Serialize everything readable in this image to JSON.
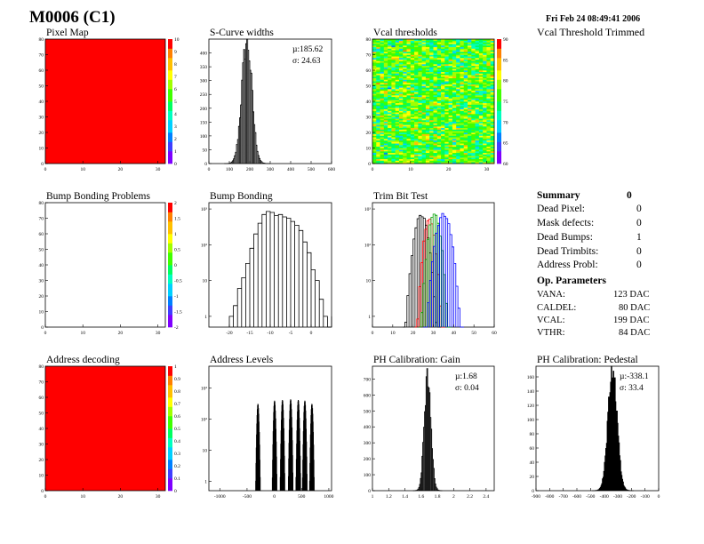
{
  "header": {
    "title": "M0006 (C1)",
    "date": "Fri Feb 24 08:49:41 2006",
    "subtitle": "Vcal Threshold Trimmed"
  },
  "summary": {
    "title": "Summary",
    "title_value": "0",
    "rows": [
      {
        "label": "Dead Pixel:",
        "value": "0"
      },
      {
        "label": "Mask defects:",
        "value": "0"
      },
      {
        "label": "Dead Bumps:",
        "value": "1"
      },
      {
        "label": "Dead Trimbits:",
        "value": "0"
      },
      {
        "label": "Address Probl:",
        "value": "0"
      }
    ],
    "op_title": "Op. Parameters",
    "op_rows": [
      {
        "label": "VANA:",
        "value": "123 DAC"
      },
      {
        "label": "CALDEL:",
        "value": "80 DAC"
      },
      {
        "label": "VCAL:",
        "value": "199 DAC"
      },
      {
        "label": "VTHR:",
        "value": "84 DAC"
      }
    ]
  },
  "colors": {
    "palette": [
      "#7f00ff",
      "#3f3fff",
      "#0080ff",
      "#00d0ff",
      "#00ffc0",
      "#00ff60",
      "#40ff00",
      "#a0ff00",
      "#ffff00",
      "#ffc000",
      "#ff8000",
      "#ff0000"
    ],
    "full": "#ff0000"
  },
  "chart_data": [
    {
      "id": "pixel-map",
      "type": "heatmap",
      "title": "Pixel Map",
      "xlim": [
        0,
        32
      ],
      "ylim": [
        0,
        80
      ],
      "xticks": [
        "0",
        "10",
        "20",
        "30"
      ],
      "yticks": [
        "0",
        "10",
        "20",
        "30",
        "40",
        "50",
        "60",
        "70",
        "80"
      ],
      "zlim": [
        0,
        10
      ],
      "zticks": [
        "0",
        "1",
        "2",
        "3",
        "4",
        "5",
        "6",
        "7",
        "8",
        "9",
        "10"
      ],
      "fill": "uniform",
      "uniform_value": 10
    },
    {
      "id": "s-curve-widths",
      "type": "bar",
      "title": "S-Curve widths",
      "xlim": [
        0,
        600
      ],
      "ylim": [
        0,
        450
      ],
      "xticks": [
        "0",
        "100",
        "200",
        "300",
        "400",
        "500",
        "600"
      ],
      "yticks": [
        "0",
        "50",
        "100",
        "150",
        "200",
        "250",
        "300",
        "350",
        "400"
      ],
      "stats": [
        "µ:185.62",
        "σ: 24.63"
      ],
      "series": [
        {
          "color": "#000000",
          "shape": "gauss",
          "mean": 185.6,
          "sigma": 24.6,
          "peak": 440,
          "bin": 5
        }
      ]
    },
    {
      "id": "vcal-thresholds",
      "type": "heatmap",
      "title": "Vcal thresholds",
      "xlim": [
        0,
        32
      ],
      "ylim": [
        0,
        80
      ],
      "xticks": [
        "0",
        "10",
        "20",
        "30"
      ],
      "yticks": [
        "0",
        "10",
        "20",
        "30",
        "40",
        "50",
        "60",
        "70",
        "80"
      ],
      "zlim": [
        55,
        90
      ],
      "zticks": [
        "60",
        "65",
        "70",
        "75",
        "80",
        "85",
        "90"
      ],
      "fill": "noise",
      "mean": 74,
      "spread": 5
    },
    {
      "id": "bump-bonding-problems",
      "type": "heatmap",
      "title": "Bump Bonding Problems",
      "xlim": [
        0,
        32
      ],
      "ylim": [
        0,
        80
      ],
      "xticks": [
        "0",
        "10",
        "20",
        "30"
      ],
      "yticks": [
        "0",
        "10",
        "20",
        "30",
        "40",
        "50",
        "60",
        "70",
        "80"
      ],
      "zlim": [
        -2,
        2
      ],
      "zticks": [
        "-2",
        "-1.5",
        "-1",
        "-0.5",
        "0",
        "0.5",
        "1",
        "1.5",
        "2"
      ],
      "fill": "empty"
    },
    {
      "id": "bump-bonding",
      "type": "bar",
      "title": "Bump Bonding",
      "ylog": true,
      "xlim": [
        -25,
        5
      ],
      "ylim_log": [
        0.5,
        1500
      ],
      "xticks": [
        "-20",
        "-15",
        "-10",
        "-5",
        "0"
      ],
      "xtick_values": [
        -20,
        -15,
        -10,
        -5,
        0
      ],
      "yticks": [
        "1",
        "10",
        "10²",
        "10³"
      ],
      "ytick_values": [
        1,
        10,
        100,
        1000
      ],
      "series": [
        {
          "color": "#000000",
          "shape": "list",
          "x0": -20,
          "bin": 1,
          "values": [
            1,
            2,
            6,
            12,
            30,
            80,
            200,
            400,
            700,
            850,
            800,
            650,
            700,
            600,
            550,
            450,
            350,
            250,
            120,
            60,
            20,
            10,
            3,
            1,
            0,
            1
          ]
        }
      ]
    },
    {
      "id": "trim-bit-test",
      "type": "bar",
      "title": "Trim Bit Test",
      "ylog": true,
      "xlim": [
        0,
        60
      ],
      "ylim_log": [
        0.5,
        1500
      ],
      "xticks": [
        "0",
        "10",
        "20",
        "30",
        "40",
        "50",
        "60"
      ],
      "yticks": [
        "1",
        "10",
        "10²",
        "10³"
      ],
      "ytick_values": [
        1,
        10,
        100,
        1000
      ],
      "series": [
        {
          "color": "#000000",
          "shape": "gauss",
          "mean": 24,
          "sigma": 2.0,
          "peak": 700,
          "bin": 1
        },
        {
          "color": "#ff0000",
          "shape": "gauss",
          "mean": 28,
          "sigma": 1.6,
          "peak": 500,
          "bin": 1
        },
        {
          "color": "#00a000",
          "shape": "gauss",
          "mean": 30.5,
          "sigma": 1.7,
          "peak": 800,
          "bin": 1
        },
        {
          "color": "#0000ff",
          "shape": "gauss",
          "mean": 35,
          "sigma": 2.2,
          "peak": 700,
          "bin": 1
        }
      ]
    },
    {
      "id": "address-decoding",
      "type": "heatmap",
      "title": "Address decoding",
      "xlim": [
        0,
        32
      ],
      "ylim": [
        0,
        80
      ],
      "xticks": [
        "0",
        "10",
        "20",
        "30"
      ],
      "yticks": [
        "0",
        "10",
        "20",
        "30",
        "40",
        "50",
        "60",
        "70",
        "80"
      ],
      "zlim": [
        0,
        1
      ],
      "zticks": [
        "0",
        "0.1",
        "0.2",
        "0.3",
        "0.4",
        "0.5",
        "0.6",
        "0.7",
        "0.8",
        "0.9",
        "1"
      ],
      "fill": "uniform",
      "uniform_value": 1
    },
    {
      "id": "address-levels",
      "type": "bar",
      "title": "Address Levels",
      "ylog": true,
      "xlim": [
        -1200,
        1050
      ],
      "ylim_log": [
        0.5,
        5000
      ],
      "xticks": [
        "-1000",
        "-500",
        "0",
        "500",
        "1000"
      ],
      "xtick_values": [
        -1000,
        -500,
        0,
        500,
        1000
      ],
      "yticks": [
        "1",
        "10",
        "10²",
        "10³"
      ],
      "ytick_values": [
        1,
        10,
        100,
        1000
      ],
      "series": [
        {
          "color": "#000000",
          "shape": "peaks",
          "bin": 5,
          "sigma": 12,
          "peaks": [
            {
              "x": -300,
              "h": 300
            },
            {
              "x": 5,
              "h": 380
            },
            {
              "x": 150,
              "h": 400
            },
            {
              "x": 300,
              "h": 420
            },
            {
              "x": 440,
              "h": 400
            },
            {
              "x": 560,
              "h": 380
            },
            {
              "x": 690,
              "h": 300
            }
          ]
        }
      ]
    },
    {
      "id": "ph-calibration-gain",
      "type": "bar",
      "title": "PH Calibration: Gain",
      "xlim": [
        1.0,
        2.5
      ],
      "ylim": [
        0,
        780
      ],
      "xticks": [
        "1",
        "1.2",
        "1.4",
        "1.6",
        "1.8",
        "2",
        "2.2",
        "2.4"
      ],
      "xtick_values": [
        1,
        1.2,
        1.4,
        1.6,
        1.8,
        2,
        2.2,
        2.4
      ],
      "yticks": [
        "0",
        "100",
        "200",
        "300",
        "400",
        "500",
        "600",
        "700"
      ],
      "stats": [
        "µ:1.68",
        "σ: 0.04"
      ],
      "series": [
        {
          "color": "#000000",
          "shape": "gauss",
          "mean": 1.68,
          "sigma": 0.04,
          "peak": 730,
          "bin": 0.01
        }
      ]
    },
    {
      "id": "ph-calibration-pedestal",
      "type": "bar",
      "title": "PH Calibration: Pedestal",
      "xlim": [
        -900,
        0
      ],
      "ylim": [
        0,
        175
      ],
      "xticks": [
        "-900",
        "-800",
        "-700",
        "-600",
        "-500",
        "-400",
        "-300",
        "-200",
        "-100",
        "0"
      ],
      "xtick_values": [
        -900,
        -800,
        -700,
        -600,
        -500,
        -400,
        -300,
        -200,
        -100,
        0
      ],
      "yticks": [
        "0",
        "20",
        "40",
        "60",
        "80",
        "100",
        "120",
        "140",
        "160"
      ],
      "stats": [
        "µ:-338.1",
        "σ: 33.4"
      ],
      "series": [
        {
          "color": "#000000",
          "shape": "gauss",
          "mean": -338.1,
          "sigma": 33.4,
          "peak": 168,
          "bin": 5
        }
      ]
    }
  ]
}
